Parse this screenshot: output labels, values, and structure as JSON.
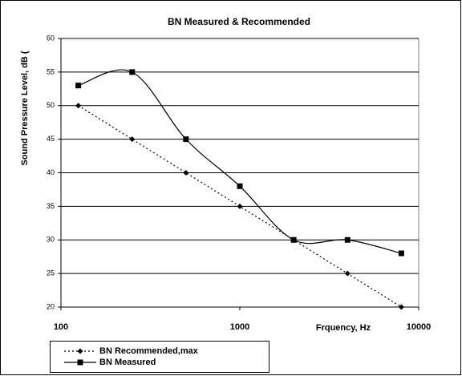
{
  "chart_data": {
    "type": "line",
    "title": "BN Measured & Recommended",
    "y_label": "Sound Pressure Level, dB (",
    "x_label": "Frquency, Hz",
    "x": [
      125,
      250,
      500,
      1000,
      2000,
      4000,
      8000
    ],
    "xscale": "log",
    "xlim": [
      100,
      10000
    ],
    "xticks": [
      100,
      1000,
      10000
    ],
    "ylim": [
      20,
      60
    ],
    "yticks": [
      20,
      25,
      30,
      35,
      40,
      45,
      50,
      55,
      60
    ],
    "grid": true,
    "legend": "bottom-left",
    "series": [
      {
        "name": "BN Recommended,max",
        "color": "#000000",
        "line_style": "dotted",
        "smooth": false,
        "marker": "diamond",
        "values": [
          50,
          45,
          40,
          35,
          30,
          25,
          20
        ]
      },
      {
        "name": "BN Measured",
        "color": "#000000",
        "line_style": "solid",
        "smooth": true,
        "marker": "square",
        "values": [
          53,
          55,
          45,
          38,
          30,
          30,
          28
        ]
      }
    ]
  }
}
